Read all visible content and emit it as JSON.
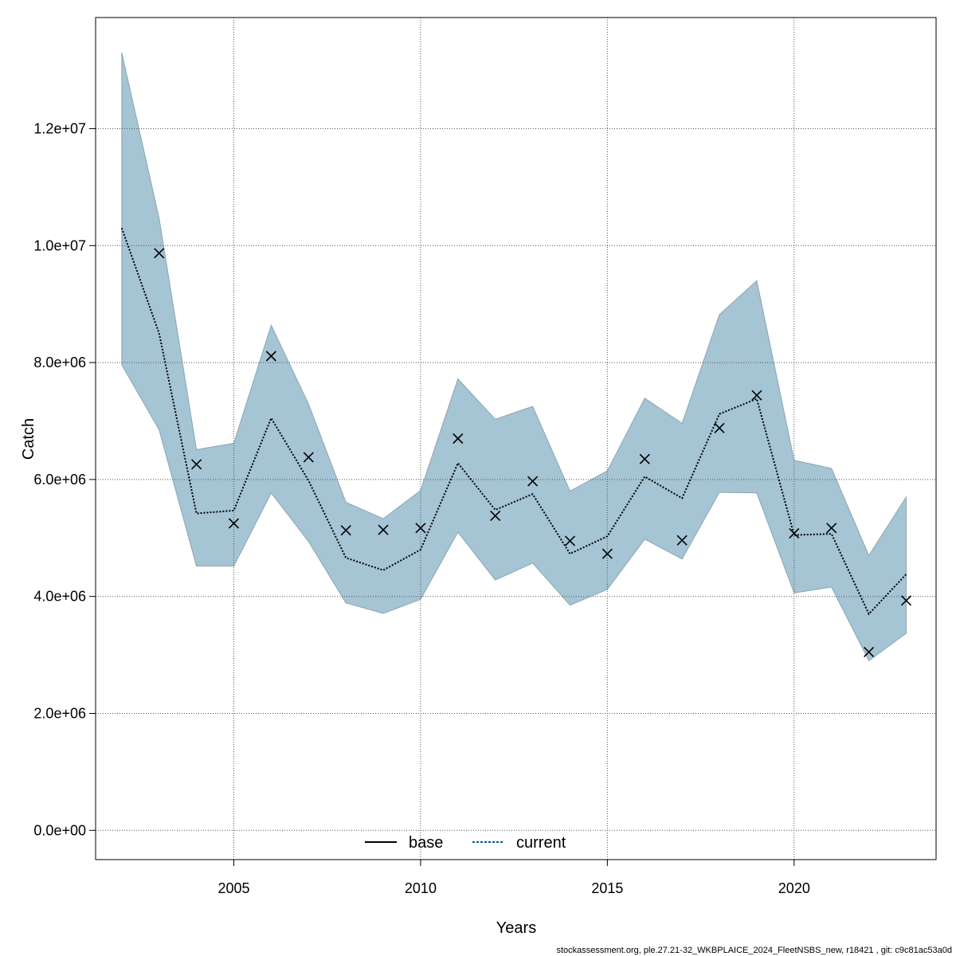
{
  "chart_data": {
    "type": "line",
    "xlabel": "Years",
    "ylabel": "Catch",
    "xlim": [
      2001.3,
      2023.8
    ],
    "ylim": [
      -500000,
      13900000
    ],
    "x_ticks": [
      2005,
      2010,
      2015,
      2020
    ],
    "x_tick_labels": [
      "2005",
      "2010",
      "2015",
      "2020"
    ],
    "y_ticks": [
      0,
      2000000,
      4000000,
      6000000,
      8000000,
      10000000,
      12000000
    ],
    "y_tick_labels": [
      "0.0e+00",
      "2.0e+06",
      "4.0e+06",
      "6.0e+06",
      "8.0e+06",
      "1.0e+07",
      "1.2e+07"
    ],
    "grid": true,
    "legend": {
      "position": "bottom-center",
      "entries": [
        {
          "name": "base",
          "style": "solid",
          "color": "#000000"
        },
        {
          "name": "current",
          "style": "dotted",
          "color": "#0b5a8c"
        }
      ]
    },
    "band_color": "#a5c4d4",
    "x": [
      2002,
      2003,
      2004,
      2005,
      2006,
      2007,
      2008,
      2009,
      2010,
      2011,
      2012,
      2013,
      2014,
      2015,
      2016,
      2017,
      2018,
      2019,
      2020,
      2021,
      2022,
      2023
    ],
    "series": [
      {
        "name": "current",
        "kind": "line",
        "values": [
          10300000,
          8500000,
          5420000,
          5470000,
          7050000,
          5980000,
          4660000,
          4450000,
          4800000,
          6280000,
          5480000,
          5750000,
          4730000,
          5030000,
          6050000,
          5680000,
          7120000,
          7380000,
          5050000,
          5070000,
          3700000,
          4380000
        ]
      },
      {
        "name": "upper",
        "kind": "band",
        "values": [
          13300000,
          10470000,
          6510000,
          6620000,
          8640000,
          7290000,
          5610000,
          5330000,
          5810000,
          7720000,
          7030000,
          7250000,
          5800000,
          6150000,
          7390000,
          6960000,
          8820000,
          9400000,
          6330000,
          6190000,
          4700000,
          5700000
        ]
      },
      {
        "name": "lower",
        "kind": "band",
        "values": [
          7960000,
          6850000,
          4520000,
          4520000,
          5770000,
          4940000,
          3890000,
          3710000,
          3950000,
          5100000,
          4280000,
          4570000,
          3850000,
          4120000,
          4980000,
          4640000,
          5780000,
          5770000,
          4060000,
          4160000,
          2900000,
          3370000
        ]
      },
      {
        "name": "observed",
        "kind": "marker",
        "values": [
          null,
          9870000,
          6260000,
          5250000,
          8110000,
          6380000,
          5130000,
          5140000,
          5170000,
          6700000,
          5380000,
          5970000,
          4950000,
          4730000,
          6350000,
          4960000,
          6880000,
          7440000,
          5080000,
          5170000,
          3050000,
          3930000
        ]
      }
    ]
  },
  "footer": "stockassessment.org, ple.27.21-32_WKBPLAICE_2024_FleetNSBS_new, r18421 , git: c9c81ac53a0d"
}
